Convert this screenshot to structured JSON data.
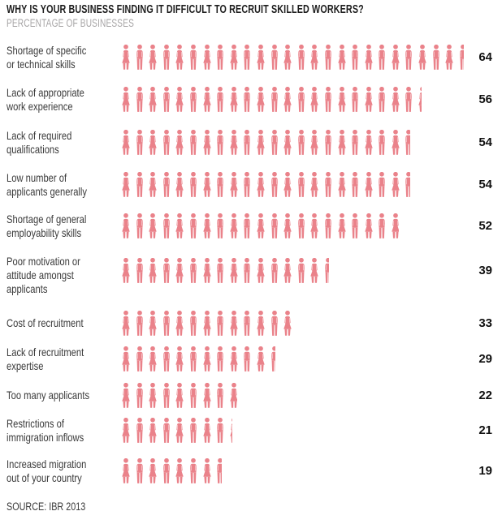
{
  "header": {
    "title": "WHY IS YOUR BUSINESS FINDING IT DIFFICULT TO RECRUIT SKILLED WORKERS?",
    "subtitle": "PERCENTAGE OF BUSINESSES"
  },
  "source": "SOURCE: IBR 2013",
  "colors": {
    "icon": "#ea828a",
    "title": "#1c1c1c",
    "subtitle": "#a7a5a6",
    "label": "#3a3a3a"
  },
  "chart_data": {
    "type": "pictogram-bar",
    "title": "WHY IS YOUR BUSINESS FINDING IT DIFFICULT TO RECRUIT SKILLED WORKERS?",
    "subtitle": "PERCENTAGE OF BUSINESSES",
    "source": "SOURCE: IBR 2013",
    "unit_per_icon": 2.5,
    "icon_alternation": [
      "woman",
      "man"
    ],
    "categories": [
      "Shortage of specific or technical skills",
      "Lack of appropriate work experience",
      "Lack of required qualifications",
      "Low number of applicants generally",
      "Shortage of general employability skills",
      "Poor motivation or attitude amongst applicants",
      "Cost of recruitment",
      "Lack of recruitment expertise",
      "Too many applicants",
      "Restrictions of immigration inflows",
      "Increased migration out of your country"
    ],
    "values": [
      64,
      56,
      54,
      54,
      52,
      39,
      33,
      29,
      22,
      21,
      19
    ],
    "rows": [
      {
        "label": "Shortage of specific\nor technical skills",
        "value": 64
      },
      {
        "label": "Lack of appropriate\nwork experience",
        "value": 56
      },
      {
        "label": "Lack of required\nqualifications",
        "value": 54
      },
      {
        "label": "Low number of\napplicants generally",
        "value": 54
      },
      {
        "label": "Shortage of general\nemployability skills",
        "value": 52
      },
      {
        "label": "Poor motivation or\nattitude amongst\napplicants",
        "value": 39
      },
      {
        "label": "Cost of recruitment",
        "value": 33
      },
      {
        "label": "Lack of recruitment\nexpertise",
        "value": 29
      },
      {
        "label": "Too many applicants",
        "value": 22
      },
      {
        "label": "Restrictions of\nimmigration inflows",
        "value": 21
      },
      {
        "label": "Increased migration\nout of your country",
        "value": 19
      }
    ]
  }
}
